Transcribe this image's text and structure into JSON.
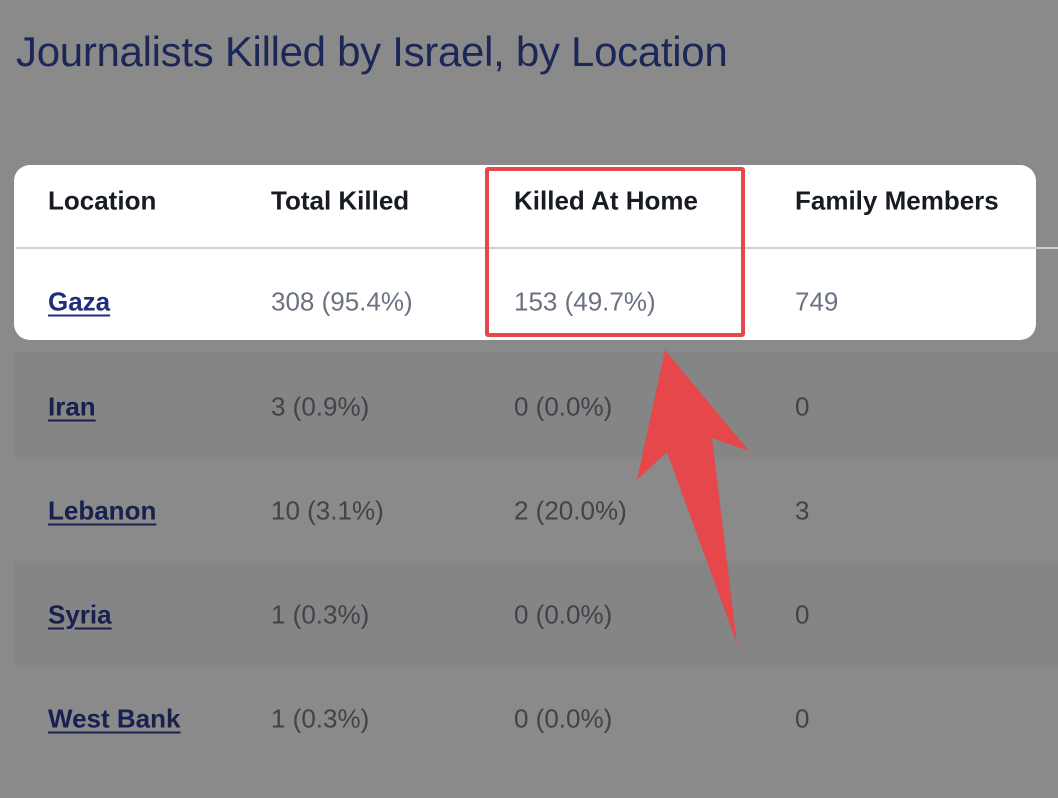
{
  "title": "Journalists Killed by Israel, by Location",
  "table": {
    "headers": [
      "Location",
      "Total Killed",
      "Killed At Home",
      "Family Members"
    ],
    "rows": [
      {
        "location": "Gaza",
        "total": "308 (95.4%)",
        "home": "153 (49.7%)",
        "family": "749"
      },
      {
        "location": "Iran",
        "total": "3 (0.9%)",
        "home": "0 (0.0%)",
        "family": "0"
      },
      {
        "location": "Lebanon",
        "total": "10 (3.1%)",
        "home": "2 (20.0%)",
        "family": "3"
      },
      {
        "location": "Syria",
        "total": "1 (0.3%)",
        "home": "0 (0.0%)",
        "family": "0"
      },
      {
        "location": "West Bank",
        "total": "1 (0.3%)",
        "home": "0 (0.0%)",
        "family": "0"
      }
    ]
  },
  "annotation": {
    "highlight_column": "Killed At Home",
    "highlight_color": "#e5474b",
    "arrow_color": "#e5474b"
  }
}
